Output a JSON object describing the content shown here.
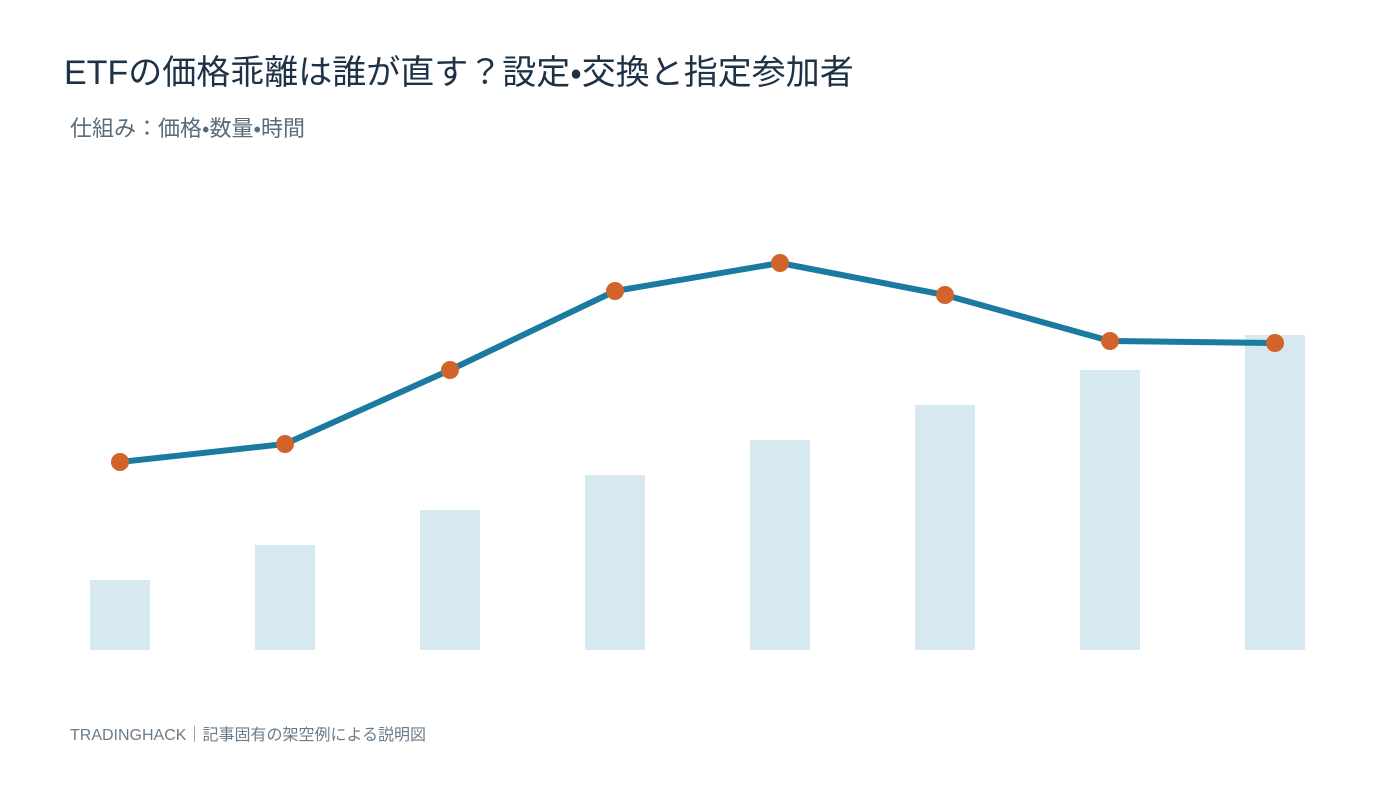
{
  "chart_data": {
    "type": "combo",
    "title": "ETFの価格乖離は誰が直す？設定・交換と指定参加者",
    "subtitle": "仕組み：価格・数量・時間",
    "footer": "TRADINGHACK｜記事固有の架空例による説明図",
    "ylim": [
      0,
      400
    ],
    "series": [
      {
        "type": "bar",
        "color": "#d6e8f0",
        "values": [
          70,
          105,
          140,
          175,
          210,
          245,
          280,
          315
        ]
      },
      {
        "type": "line",
        "color": "#1a7aa0",
        "marker_color": "#d2642a",
        "values": [
          188,
          206,
          280,
          359,
          387,
          355,
          309,
          307
        ]
      }
    ]
  }
}
